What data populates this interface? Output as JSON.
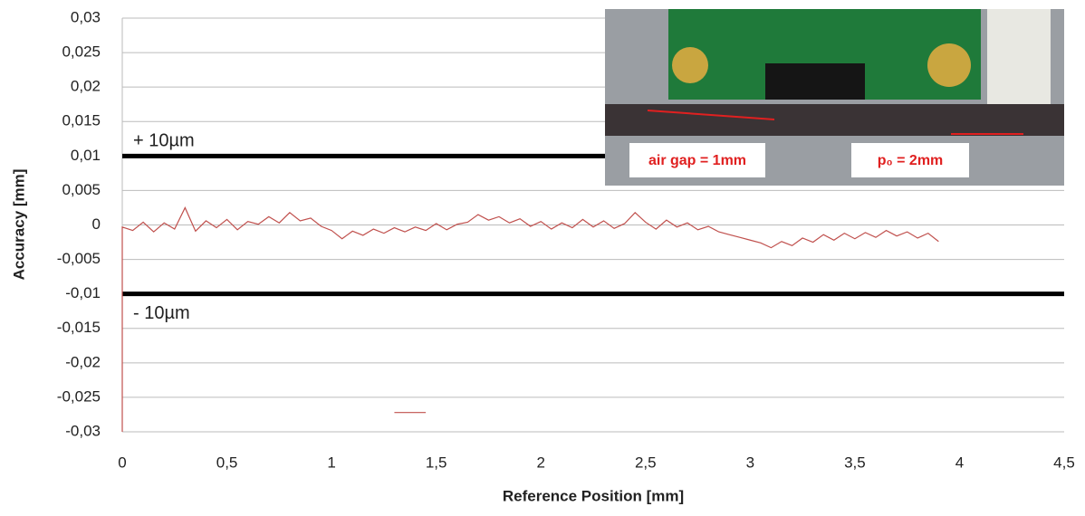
{
  "chart_data": {
    "type": "line",
    "ylabel": "Accuracy [mm]",
    "xlabel": "Reference Position [mm]",
    "xlim": [
      0,
      4.5
    ],
    "xticks": [
      0,
      {
        "value": 0.5,
        "label": "0,5"
      },
      1,
      {
        "value": 1.5,
        "label": "1,5"
      },
      2,
      {
        "value": 2.5,
        "label": "2,5"
      },
      3,
      {
        "value": 3.5,
        "label": "3,5"
      },
      4,
      {
        "value": 4.5,
        "label": "4,5"
      }
    ],
    "ylim": [
      -0.03,
      0.03
    ],
    "yticks": [
      {
        "value": -0.03,
        "label": "-0,03"
      },
      {
        "value": -0.025,
        "label": "-0,025"
      },
      {
        "value": -0.02,
        "label": "-0,02"
      },
      {
        "value": -0.015,
        "label": "-0,015"
      },
      {
        "value": -0.01,
        "label": "-0,01"
      },
      {
        "value": -0.005,
        "label": "-0,005"
      },
      0,
      {
        "value": 0.005,
        "label": "0,005"
      },
      {
        "value": 0.01,
        "label": "0,01"
      },
      {
        "value": 0.015,
        "label": "0,015"
      },
      {
        "value": 0.02,
        "label": "0,02"
      },
      {
        "value": 0.025,
        "label": "0,025"
      },
      {
        "value": 0.03,
        "label": "0,03"
      }
    ],
    "grid": true,
    "reference_lines": [
      {
        "value": 0.01,
        "label": "+ 10µm"
      },
      {
        "value": -0.01,
        "label": "- 10µm"
      }
    ],
    "annotations": [
      "air gap = 1mm",
      "p₀ = 2mm"
    ],
    "series": [
      {
        "color": "#c0504d",
        "x": [
          0,
          0,
          0.05,
          0.1,
          0.15,
          0.2,
          0.25,
          0.3,
          0.35,
          0.4,
          0.45,
          0.5,
          0.55,
          0.6,
          0.65,
          0.7,
          0.75,
          0.8,
          0.85,
          0.9,
          0.95,
          1,
          1.05,
          1.1,
          1.15,
          1.2,
          1.25,
          1.3,
          1.35,
          1.4,
          1.45,
          1.5,
          1.55,
          1.6,
          1.65,
          1.7,
          1.75,
          1.8,
          1.85,
          1.9,
          1.95,
          2,
          2.05,
          2.1,
          2.15,
          2.2,
          2.25,
          2.3,
          2.35,
          2.4,
          2.45,
          2.5,
          2.55,
          2.6,
          2.65,
          2.7,
          2.75,
          2.8,
          2.85,
          2.9,
          2.95,
          3,
          3.05,
          3.1,
          3.15,
          3.2,
          3.25,
          3.3,
          3.35,
          3.4,
          3.45,
          3.5,
          3.55,
          3.6,
          3.65,
          3.7,
          3.75,
          3.8,
          3.85,
          3.9
        ],
        "values": [
          -0.03,
          -0.0003,
          -0.0008,
          0.0004,
          -0.001,
          0.0003,
          -0.0006,
          0.0025,
          -0.0009,
          0.0006,
          -0.0004,
          0.0008,
          -0.0007,
          0.0005,
          0.0001,
          0.0012,
          0.0003,
          0.0018,
          0.0006,
          0.001,
          -0.0002,
          -0.0008,
          -0.002,
          -0.0009,
          -0.0015,
          -0.0006,
          -0.0012,
          -0.0004,
          -0.001,
          -0.0003,
          -0.0008,
          0.0002,
          -0.0007,
          0.0001,
          0.0004,
          0.0015,
          0.0007,
          0.0012,
          0.0003,
          0.0009,
          -0.0002,
          0.0005,
          -0.0006,
          0.0003,
          -0.0004,
          0.0008,
          -0.0003,
          0.0006,
          -0.0005,
          0.0002,
          0.0018,
          0.0004,
          -0.0006,
          0.0007,
          -0.0003,
          0.0003,
          -0.0007,
          -0.0002,
          -0.001,
          -0.0014,
          -0.0018,
          -0.0022,
          -0.0026,
          -0.0033,
          -0.0024,
          -0.003,
          -0.0019,
          -0.0025,
          -0.0014,
          -0.0022,
          -0.0012,
          -0.002,
          -0.0011,
          -0.0018,
          -0.0008,
          -0.0016,
          -0.001,
          -0.0019,
          -0.0012,
          -0.0024
        ]
      },
      {
        "color": "#c0504d",
        "x": [
          1.3,
          1.45
        ],
        "values": [
          -0.0272,
          -0.0272
        ]
      }
    ]
  }
}
